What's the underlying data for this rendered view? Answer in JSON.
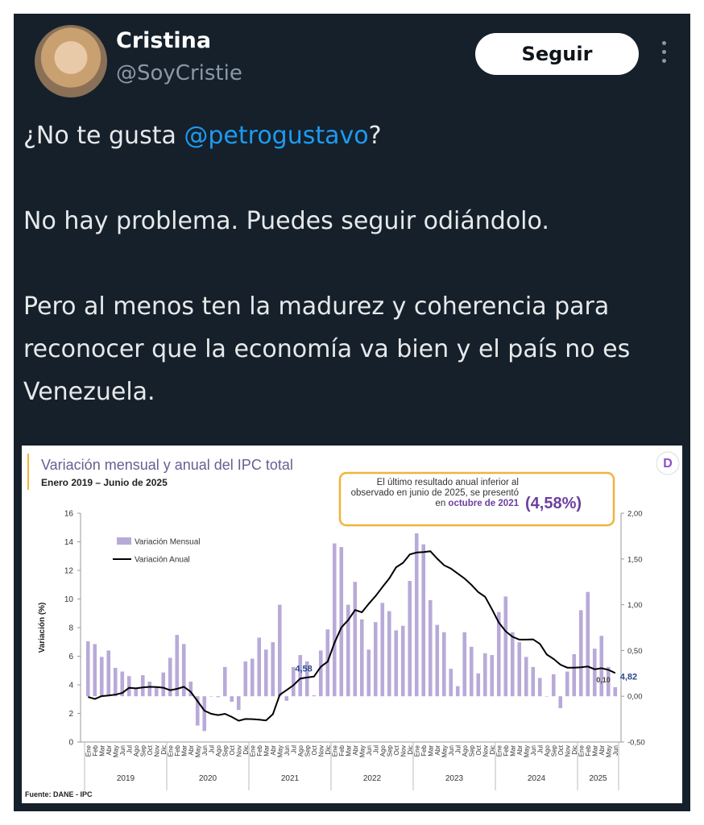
{
  "tweet": {
    "name": "Cristina",
    "handle": "@SoyCristie",
    "follow": "Seguir",
    "paragraphs": [
      [
        "¿No te gusta ",
        "@petrogustavo",
        "?"
      ],
      [
        "No hay problema. Puedes seguir odiándolo."
      ],
      [
        "Pero al menos ten la madurez y coherencia para reconocer que la economía va bien y el país no es Venezuela."
      ]
    ]
  },
  "chart_data": {
    "type": "combo",
    "title": "Variación mensual y anual del IPC total",
    "subtitle": "Enero 2019 – Junio de 2025",
    "y_label": "Variación (%)",
    "source": "Fuente: DANE - IPC",
    "callout": {
      "text": "El último resultado anual inferior al observado en junio de 2025, se presentó en",
      "highlight": "octubre de 2021",
      "value": "(4,58%)"
    },
    "categories": [
      "Ene",
      "Feb",
      "Mar",
      "Abr",
      "May",
      "Jun",
      "Jul",
      "Ago",
      "Sep",
      "Oct",
      "Nov",
      "Dic",
      "Ene",
      "Feb",
      "Mar",
      "Abr",
      "May",
      "Jun",
      "Jul",
      "Ago",
      "Sep",
      "Oct",
      "Nov",
      "Dic",
      "Ene",
      "Feb",
      "Mar",
      "Abr",
      "May",
      "Jun",
      "Jul",
      "Ago",
      "Sep",
      "Oct",
      "Nov",
      "Dic",
      "Ene",
      "Feb",
      "Mar",
      "Abr",
      "May",
      "Jun",
      "Jul",
      "Ago",
      "Sep",
      "Oct",
      "Nov",
      "Dic",
      "Ene",
      "Feb",
      "Mar",
      "Abr",
      "May",
      "Jun",
      "Jul",
      "Ago",
      "Sep",
      "Oct",
      "Nov",
      "Dic",
      "Ene",
      "Feb",
      "Mar",
      "Abr",
      "May",
      "Jun",
      "Jul",
      "Ago",
      "Sep",
      "Oct",
      "Nov",
      "Dic",
      "Ene",
      "Feb",
      "Mar",
      "Abr",
      "May",
      "Jun"
    ],
    "years": [
      "2019",
      "2020",
      "2021",
      "2022",
      "2023",
      "2024",
      "2025"
    ],
    "series": [
      {
        "name": "Variación Mensual",
        "type": "bar",
        "axis": "y2",
        "color": "#b8aad8",
        "values": [
          0.6,
          0.57,
          0.43,
          0.5,
          0.31,
          0.27,
          0.22,
          0.09,
          0.23,
          0.16,
          0.1,
          0.26,
          0.42,
          0.67,
          0.57,
          0.16,
          -0.32,
          -0.38,
          0.0,
          -0.01,
          0.32,
          -0.06,
          -0.15,
          0.38,
          0.41,
          0.64,
          0.51,
          0.59,
          1.0,
          -0.05,
          0.32,
          0.45,
          0.38,
          0.01,
          0.5,
          0.73,
          1.67,
          1.63,
          1.0,
          1.25,
          0.84,
          0.51,
          0.81,
          1.02,
          0.93,
          0.72,
          0.77,
          1.26,
          1.78,
          1.66,
          1.05,
          0.78,
          0.7,
          0.3,
          0.11,
          0.7,
          0.54,
          0.25,
          0.47,
          0.45,
          0.92,
          1.09,
          0.7,
          0.59,
          0.43,
          0.32,
          0.2,
          0.0,
          0.24,
          -0.13,
          0.27,
          0.46,
          0.94,
          1.14,
          0.52,
          0.66,
          0.32,
          0.1
        ],
        "value_labels": [
          null,
          null,
          null,
          null,
          null,
          null,
          null,
          null,
          null,
          null,
          null,
          null,
          null,
          null,
          null,
          null,
          null,
          null,
          null,
          null,
          null,
          null,
          null,
          null,
          null,
          null,
          null,
          null,
          null,
          null,
          null,
          null,
          null,
          null,
          null,
          null,
          null,
          null,
          null,
          null,
          null,
          null,
          null,
          null,
          null,
          null,
          null,
          null,
          null,
          null,
          null,
          null,
          null,
          null,
          null,
          null,
          null,
          null,
          null,
          null,
          null,
          null,
          null,
          null,
          null,
          null,
          null,
          null,
          null,
          null,
          null,
          null,
          null,
          null,
          null,
          null,
          null,
          "0,10"
        ]
      },
      {
        "name": "Variación Anual",
        "type": "line",
        "axis": "y",
        "color": "#000000",
        "values": [
          3.15,
          3.01,
          3.21,
          3.25,
          3.31,
          3.43,
          3.79,
          3.75,
          3.82,
          3.86,
          3.84,
          3.8,
          3.62,
          3.72,
          3.86,
          3.51,
          2.85,
          2.19,
          1.97,
          1.88,
          1.97,
          1.75,
          1.49,
          1.61,
          1.6,
          1.56,
          1.51,
          1.95,
          3.3,
          3.63,
          3.97,
          4.44,
          4.51,
          4.58,
          5.26,
          5.62,
          6.94,
          8.01,
          8.53,
          9.23,
          9.07,
          9.67,
          10.21,
          10.84,
          11.44,
          12.22,
          12.53,
          13.12,
          13.25,
          13.28,
          13.34,
          12.82,
          12.36,
          12.13,
          11.78,
          11.43,
          10.99,
          10.48,
          10.15,
          9.28,
          8.35,
          7.74,
          7.36,
          7.16,
          7.16,
          7.18,
          6.86,
          6.12,
          5.81,
          5.41,
          5.2,
          5.2,
          5.22,
          5.28,
          5.09,
          5.16,
          5.05,
          4.82
        ],
        "value_labels": [
          null,
          null,
          null,
          null,
          null,
          null,
          null,
          null,
          null,
          null,
          null,
          null,
          null,
          null,
          null,
          null,
          null,
          null,
          null,
          null,
          null,
          null,
          null,
          null,
          null,
          null,
          null,
          null,
          null,
          null,
          null,
          null,
          null,
          "4,58",
          null,
          null,
          null,
          null,
          null,
          null,
          null,
          null,
          null,
          null,
          null,
          null,
          null,
          null,
          null,
          null,
          null,
          null,
          null,
          null,
          null,
          null,
          null,
          null,
          null,
          null,
          null,
          null,
          null,
          null,
          null,
          null,
          null,
          null,
          null,
          null,
          null,
          null,
          null,
          null,
          null,
          null,
          null,
          "4,82"
        ]
      }
    ],
    "ylim": [
      0,
      16
    ],
    "yticks": [
      0,
      2,
      4,
      6,
      8,
      10,
      12,
      14,
      16
    ],
    "y2lim": [
      -0.5,
      2
    ],
    "y2ticks": [
      {
        "value": -0.5,
        "label": "-0,50"
      },
      {
        "value": 0,
        "label": "0,00"
      },
      {
        "value": 0.5,
        "label": "0,50"
      },
      {
        "value": 1,
        "label": "1,00"
      },
      {
        "value": 1.5,
        "label": "1,50"
      },
      {
        "value": 2,
        "label": "2,00"
      }
    ]
  }
}
